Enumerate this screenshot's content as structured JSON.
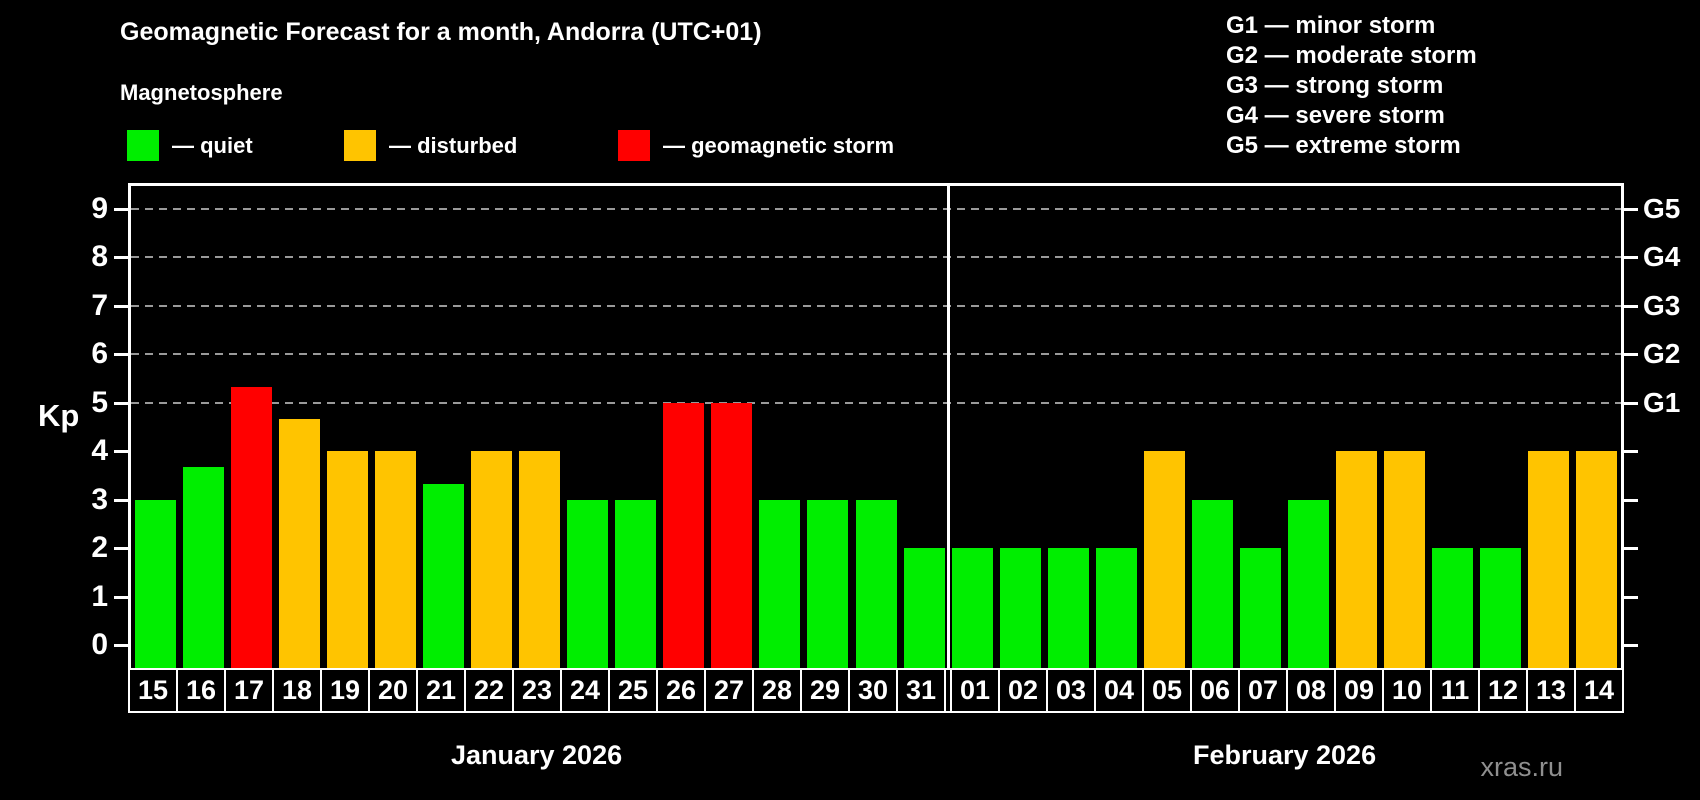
{
  "header": {
    "title": "Geomagnetic Forecast for a month, Andorra (UTC+01)",
    "subtitle": "Magnetosphere"
  },
  "legend": {
    "items": [
      {
        "name": "quiet",
        "label": "— quiet",
        "color": "#00EE00"
      },
      {
        "name": "disturbed",
        "label": "— disturbed",
        "color": "#FFC400"
      },
      {
        "name": "storm",
        "label": "— geomagnetic storm",
        "color": "#FF0000"
      }
    ]
  },
  "g_legend": {
    "items": [
      "G1 — minor storm",
      "G2 — moderate storm",
      "G3 — strong storm",
      "G4 — severe storm",
      "G5 — extreme storm"
    ]
  },
  "watermark": "xras.ru",
  "chart_data": {
    "type": "bar",
    "title": "Geomagnetic Forecast for a month, Andorra (UTC+01)",
    "ylabel": "Kp",
    "ylim": [
      0,
      9.5
    ],
    "y_ticks": [
      0,
      1,
      2,
      3,
      4,
      5,
      6,
      7,
      8,
      9
    ],
    "gridlines_at_kp": [
      5,
      6,
      7,
      8,
      9
    ],
    "grid_style": "dashed horizontal gray lines at G-storm levels",
    "right_axis_labels": [
      {
        "label": "G1",
        "kp": 5
      },
      {
        "label": "G2",
        "kp": 6
      },
      {
        "label": "G3",
        "kp": 7
      },
      {
        "label": "G4",
        "kp": 8
      },
      {
        "label": "G5",
        "kp": 9
      }
    ],
    "months": [
      {
        "label": "January 2026",
        "days": 17
      },
      {
        "label": "February 2026",
        "days": 14
      }
    ],
    "categories": [
      "15",
      "16",
      "17",
      "18",
      "19",
      "20",
      "21",
      "22",
      "23",
      "24",
      "25",
      "26",
      "27",
      "28",
      "29",
      "30",
      "31",
      "01",
      "02",
      "03",
      "04",
      "05",
      "06",
      "07",
      "08",
      "09",
      "10",
      "11",
      "12",
      "13",
      "14"
    ],
    "values": [
      3,
      3.67,
      5.33,
      4.67,
      4,
      4,
      3.33,
      4,
      4,
      3,
      3,
      5,
      5,
      3,
      3,
      3,
      2,
      2,
      2,
      2,
      2,
      4,
      3,
      2,
      3,
      4,
      4,
      2,
      2,
      4,
      4
    ],
    "statuses": [
      "quiet",
      "quiet",
      "storm",
      "disturbed",
      "disturbed",
      "disturbed",
      "quiet",
      "disturbed",
      "disturbed",
      "quiet",
      "quiet",
      "storm",
      "storm",
      "quiet",
      "quiet",
      "quiet",
      "quiet",
      "quiet",
      "quiet",
      "quiet",
      "quiet",
      "disturbed",
      "quiet",
      "quiet",
      "quiet",
      "disturbed",
      "disturbed",
      "quiet",
      "quiet",
      "disturbed",
      "disturbed"
    ],
    "status_colors": {
      "quiet": "#00EE00",
      "disturbed": "#FFC400",
      "storm": "#FF0000"
    },
    "legend_position": "top"
  }
}
